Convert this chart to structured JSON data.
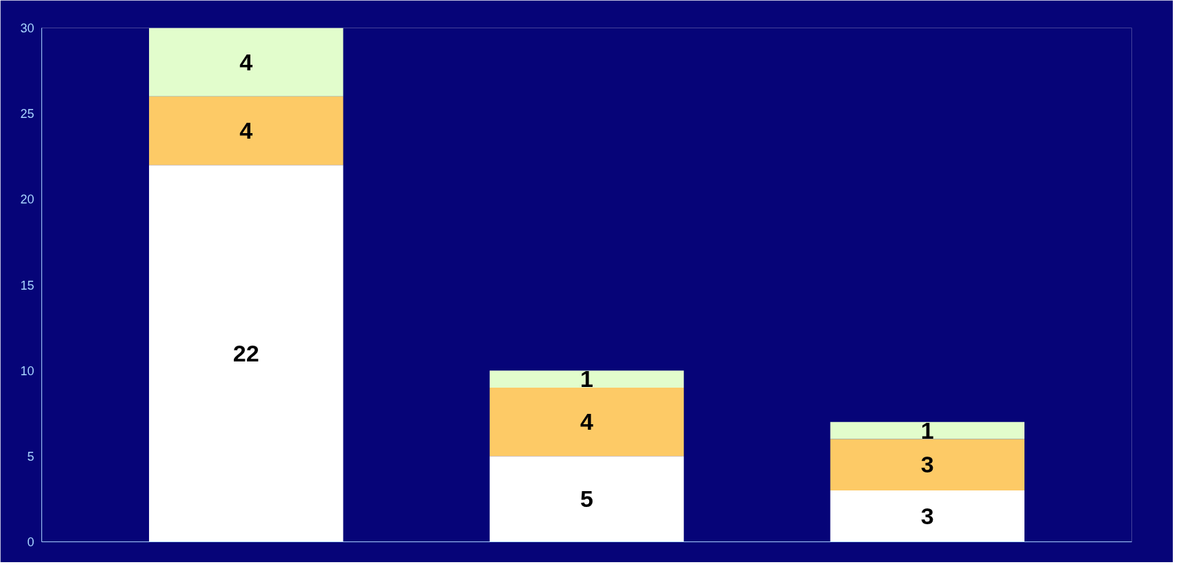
{
  "chart_data": {
    "type": "bar",
    "stacked": true,
    "data_labels": true,
    "categories": [
      null,
      null,
      null
    ],
    "series": [
      {
        "color": "#ffffff",
        "values": [
          22,
          5,
          3
        ]
      },
      {
        "color": "#fdca66",
        "values": [
          4,
          4,
          3
        ]
      },
      {
        "color": "#e2fdcc",
        "values": [
          4,
          1,
          1
        ]
      }
    ],
    "ylim": [
      0,
      30
    ],
    "yticks": [
      0,
      5,
      10,
      15,
      20,
      25,
      30
    ],
    "grid": false
  }
}
